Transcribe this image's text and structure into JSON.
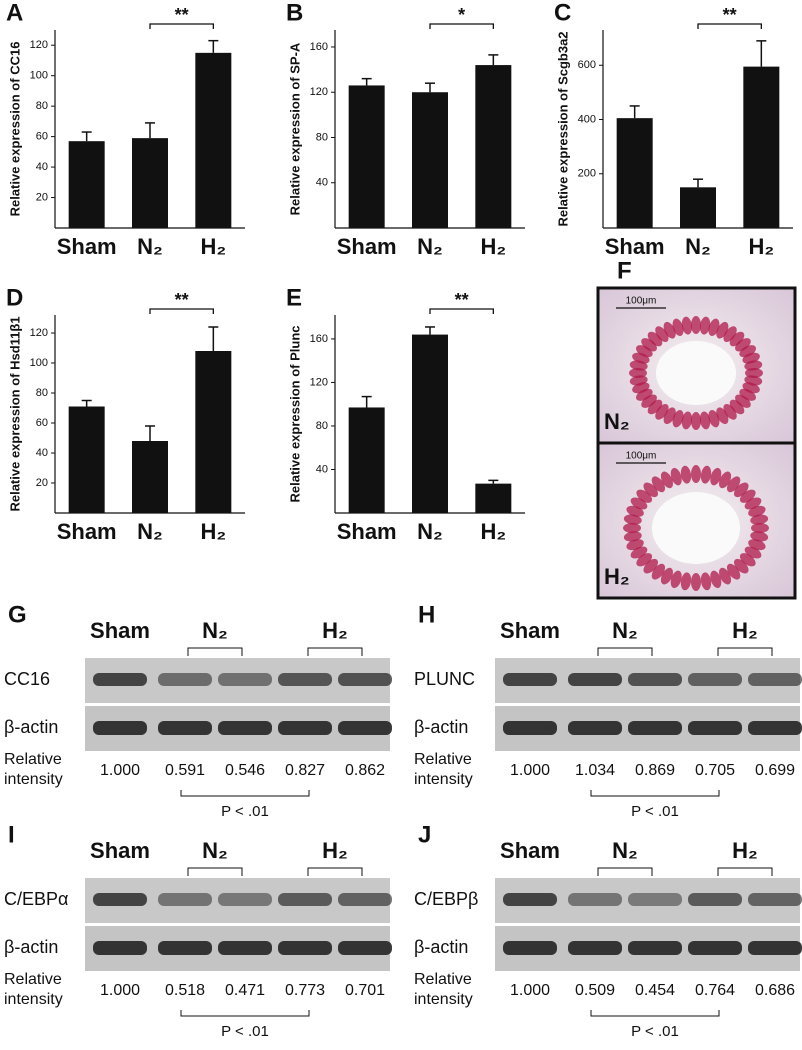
{
  "chart_data": [
    {
      "type": "bar",
      "panel": "A",
      "y_label": "Relative expression of CC16",
      "categories": [
        "Sham",
        "N₂",
        "H₂"
      ],
      "values": [
        57,
        59,
        115
      ],
      "errors": [
        6,
        10,
        8
      ],
      "color": "#111111",
      "ylim": [
        0,
        130
      ],
      "yticks": [
        20,
        40,
        60,
        80,
        100,
        120
      ],
      "annotation": "**"
    },
    {
      "type": "bar",
      "panel": "B",
      "y_label": "Relative expression of SP-A",
      "categories": [
        "Sham",
        "N₂",
        "H₂"
      ],
      "values": [
        126,
        120,
        144
      ],
      "errors": [
        6,
        8,
        9
      ],
      "color": "#111111",
      "ylim": [
        0,
        175
      ],
      "yticks": [
        40,
        80,
        120,
        160
      ],
      "annotation": "*"
    },
    {
      "type": "bar",
      "panel": "C",
      "y_label": "Relative expression of Scgb3a2",
      "categories": [
        "Sham",
        "N₂",
        "H₂"
      ],
      "values": [
        405,
        150,
        595
      ],
      "errors": [
        45,
        30,
        95
      ],
      "color": "#111111",
      "ylim": [
        0,
        730
      ],
      "yticks": [
        200,
        400,
        600
      ],
      "annotation": "**"
    },
    {
      "type": "bar",
      "panel": "D",
      "y_label": "Relative expression of Hsd11β1",
      "categories": [
        "Sham",
        "N₂",
        "H₂"
      ],
      "values": [
        71,
        48,
        108
      ],
      "errors": [
        4,
        10,
        16
      ],
      "color": "#111111",
      "ylim": [
        0,
        132
      ],
      "yticks": [
        20,
        40,
        60,
        80,
        100,
        120
      ],
      "annotation": "**"
    },
    {
      "type": "bar",
      "panel": "E",
      "y_label": "Relative expression of Plunc",
      "categories": [
        "Sham",
        "N₂",
        "H₂"
      ],
      "values": [
        97,
        164,
        27
      ],
      "errors": [
        10,
        7,
        3
      ],
      "color": "#111111",
      "ylim": [
        0,
        182
      ],
      "yticks": [
        40,
        80,
        120,
        160
      ],
      "annotation": "**"
    }
  ],
  "micrograph": {
    "panel": "F",
    "images": [
      {
        "label": "N₂",
        "scale": "100μm"
      },
      {
        "label": "H₂",
        "scale": "100μm"
      }
    ]
  },
  "blots": [
    {
      "panel": "G",
      "groups": [
        "Sham",
        "N₂",
        "H₂"
      ],
      "rows": [
        "CC16",
        "β-actin"
      ],
      "intensity_label": [
        "Relative",
        "intensity"
      ],
      "intensities": [
        "1.000",
        "0.591",
        "0.546",
        "0.827",
        "0.862"
      ],
      "p_value": "P < .01"
    },
    {
      "panel": "H",
      "groups": [
        "Sham",
        "N₂",
        "H₂"
      ],
      "rows": [
        "PLUNC",
        "β-actin"
      ],
      "intensity_label": [
        "Relative",
        "intensity"
      ],
      "intensities": [
        "1.000",
        "1.034",
        "0.869",
        "0.705",
        "0.699"
      ],
      "p_value": "P < .01"
    },
    {
      "panel": "I",
      "groups": [
        "Sham",
        "N₂",
        "H₂"
      ],
      "rows": [
        "C/EBPα",
        "β-actin"
      ],
      "intensity_label": [
        "Relative",
        "intensity"
      ],
      "intensities": [
        "1.000",
        "0.518",
        "0.471",
        "0.773",
        "0.701"
      ],
      "p_value": "P < .01"
    },
    {
      "panel": "J",
      "groups": [
        "Sham",
        "N₂",
        "H₂"
      ],
      "rows": [
        "C/EBPβ",
        "β-actin"
      ],
      "intensity_label": [
        "Relative",
        "intensity"
      ],
      "intensities": [
        "1.000",
        "0.509",
        "0.454",
        "0.764",
        "0.686"
      ],
      "p_value": "P < .01"
    }
  ]
}
